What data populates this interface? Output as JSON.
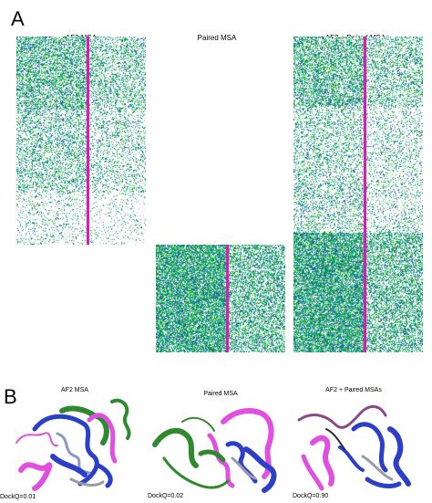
{
  "figure": {
    "panel_a_label": "A",
    "panel_b_label": "B",
    "msa_titles": [
      "AF2 MSA",
      "Paired MSA",
      "AF2 + Paired MSAs"
    ],
    "structure_titles": [
      "AF2 MSA",
      "Paired MSA",
      "AF2 + Paired MSAs"
    ],
    "dockq_labels": [
      "DockQ=0.01",
      "DockQ=0.02",
      "DockQ=0.90"
    ],
    "colors": {
      "divider": "#e01ab4",
      "chain_a": "#2b3fc9",
      "chain_b_af2": "#e04fe0",
      "chain_b_paired": "#2f8a2f",
      "msa_palette": [
        "#1fbf4a",
        "#0f7f8f",
        "#21c6a0",
        "#2a55c8",
        "#0b8a2e",
        "#9be37a",
        "#f0f0f0",
        "#6b2fa0"
      ]
    }
  }
}
